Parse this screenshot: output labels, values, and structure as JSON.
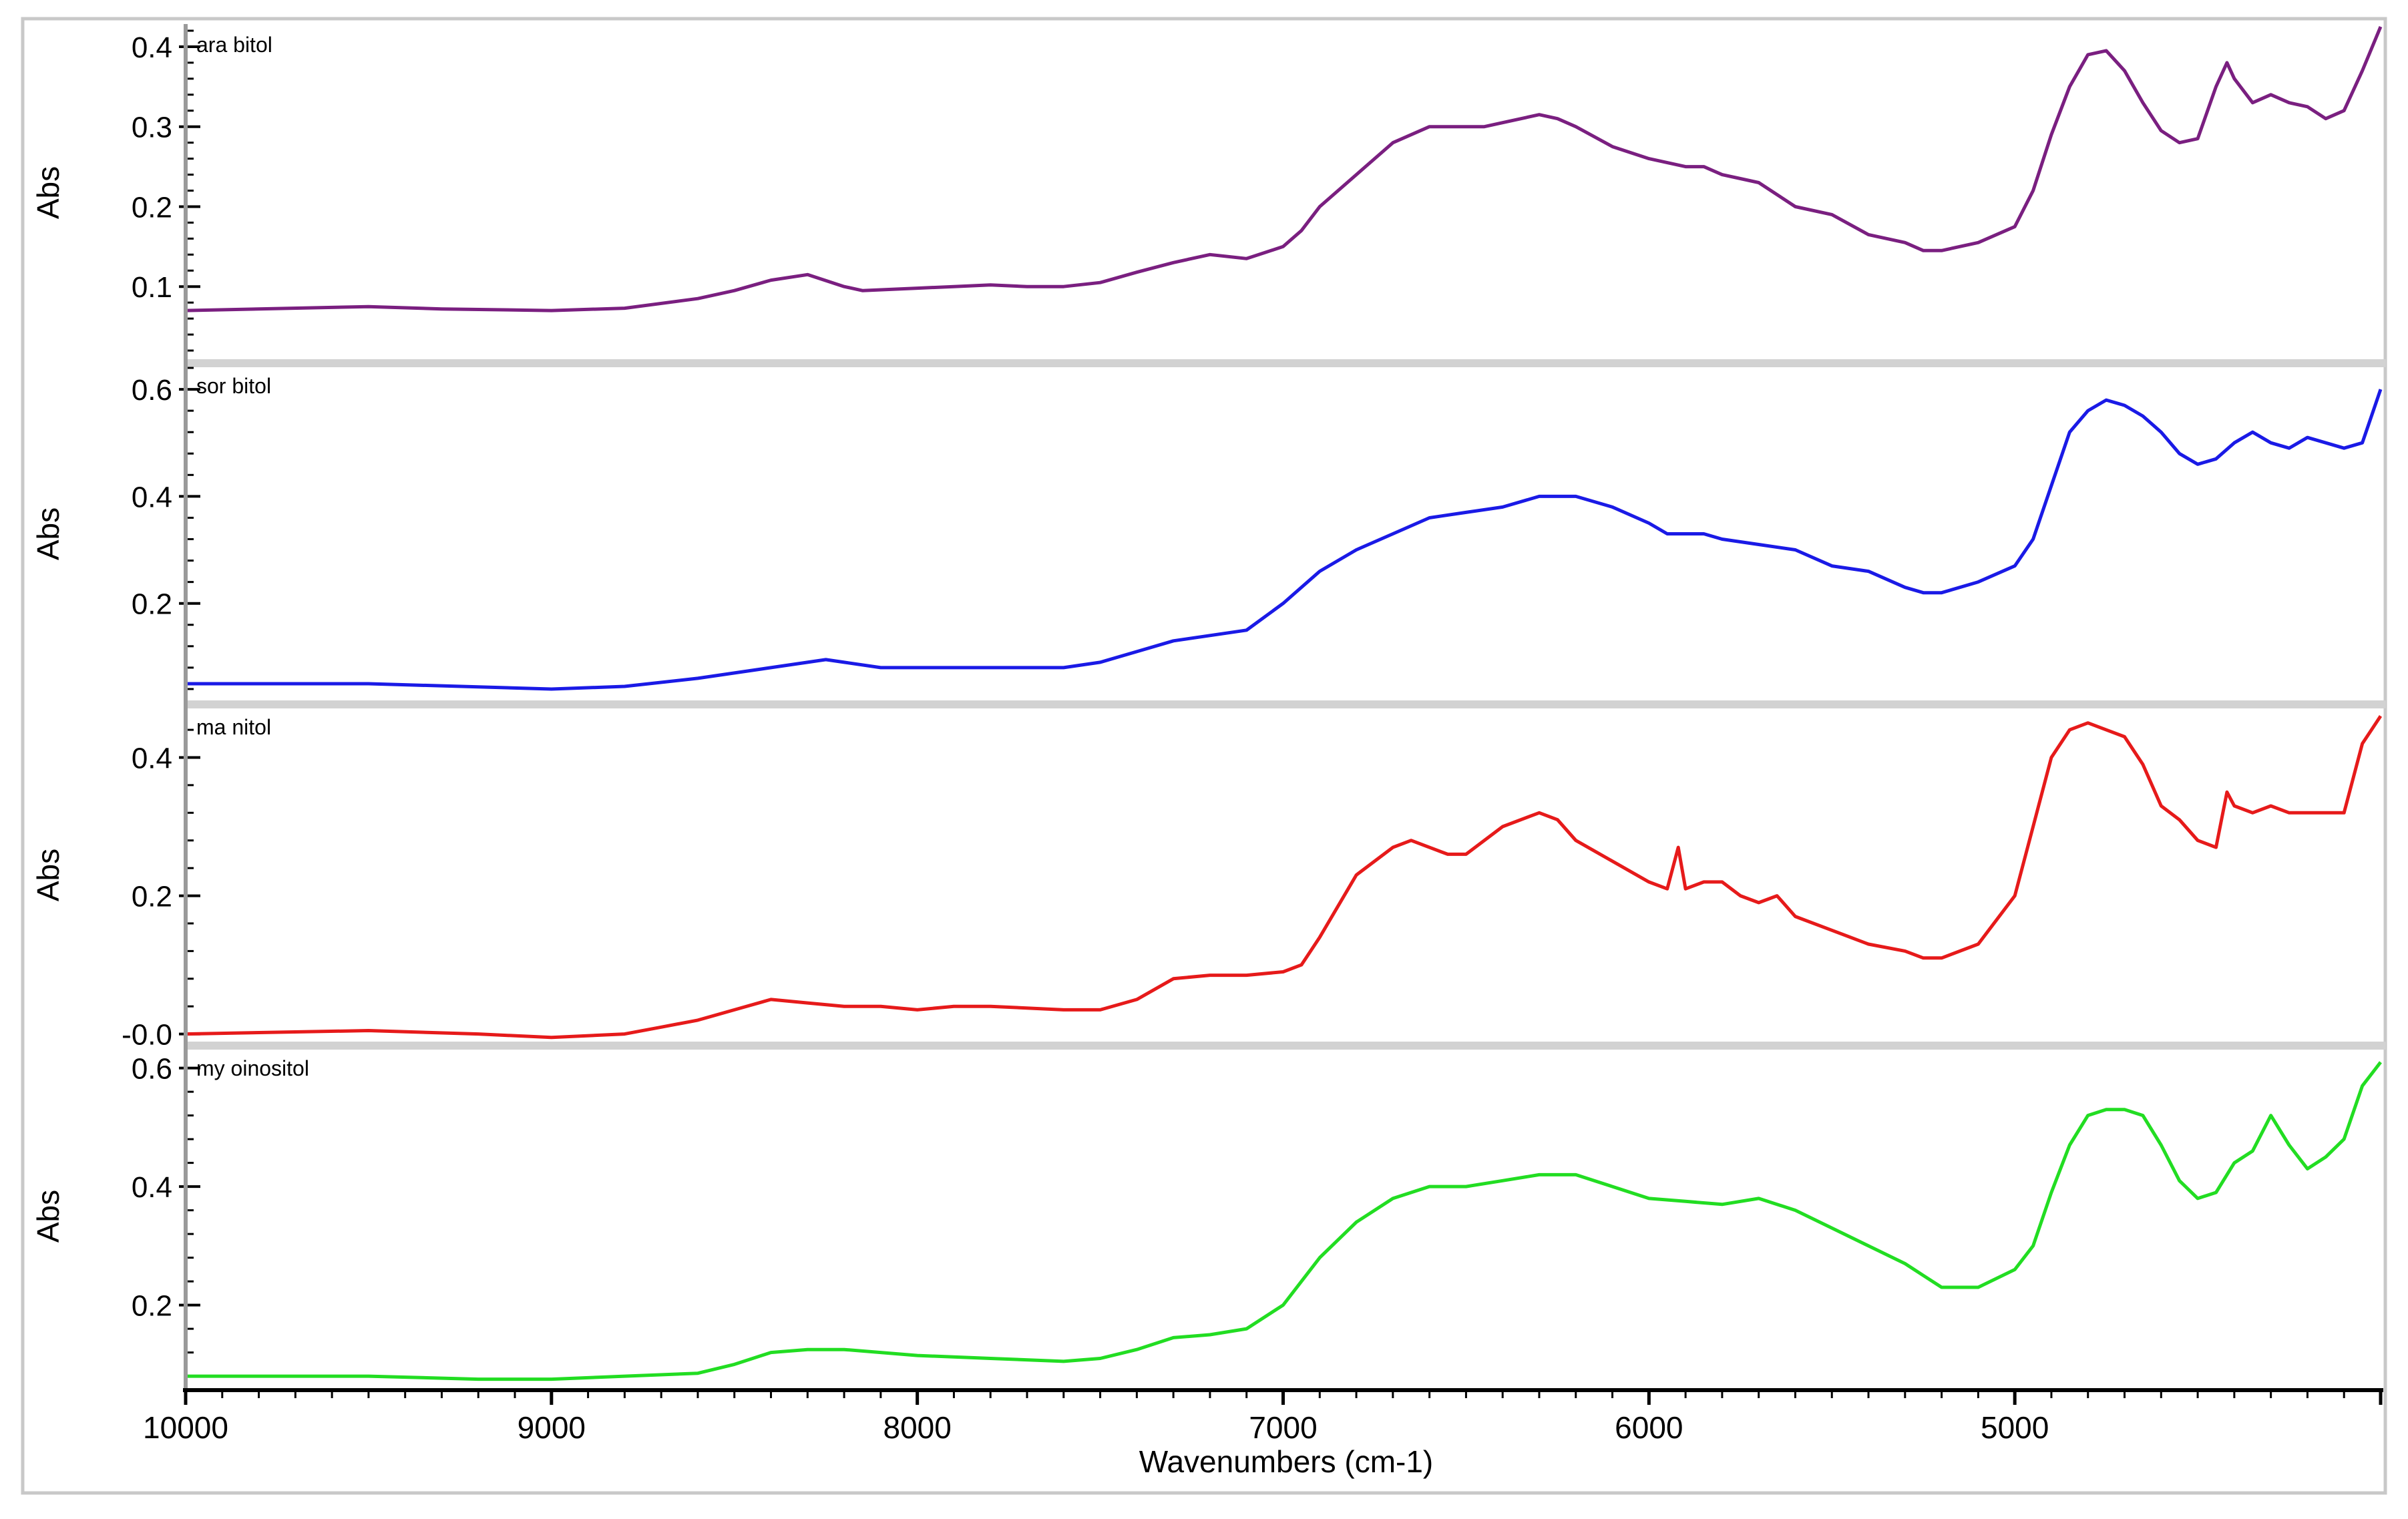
{
  "chart_data": {
    "type": "line",
    "xlabel": "Wavenumbers (cm-1)",
    "x_ticks": [
      10000,
      9000,
      8000,
      7000,
      6000,
      5000
    ],
    "x_tick_labels": [
      "10000",
      "9000",
      "8000",
      "7000",
      "6000",
      "5000"
    ],
    "xlim": [
      10000,
      4000
    ],
    "panels": [
      {
        "name": "arabitol",
        "label": "ara bitol",
        "ylabel": "Abs",
        "color": "#7a1f80",
        "ylim": [
          0.01,
          0.425
        ],
        "y_ticks": [
          0.1,
          0.2,
          0.3,
          0.4
        ],
        "y_tick_labels": [
          "0.1",
          "0.2",
          "0.3",
          "0.4"
        ],
        "x": [
          10000,
          9500,
          9300,
          9000,
          8800,
          8600,
          8500,
          8400,
          8300,
          8200,
          8150,
          8000,
          7900,
          7800,
          7700,
          7600,
          7500,
          7400,
          7300,
          7200,
          7100,
          7000,
          6950,
          6900,
          6800,
          6700,
          6600,
          6550,
          6500,
          6450,
          6400,
          6300,
          6250,
          6200,
          6100,
          6000,
          5950,
          5900,
          5850,
          5800,
          5750,
          5700,
          5600,
          5500,
          5400,
          5300,
          5250,
          5200,
          5100,
          5000,
          4950,
          4900,
          4850,
          4800,
          4750,
          4700,
          4650,
          4600,
          4550,
          4500,
          4450,
          4420,
          4400,
          4350,
          4300,
          4250,
          4200,
          4150,
          4100,
          4050,
          4000
        ],
        "values": [
          0.07,
          0.075,
          0.072,
          0.07,
          0.073,
          0.085,
          0.095,
          0.108,
          0.115,
          0.1,
          0.095,
          0.098,
          0.1,
          0.102,
          0.1,
          0.1,
          0.105,
          0.118,
          0.13,
          0.14,
          0.135,
          0.15,
          0.17,
          0.2,
          0.24,
          0.28,
          0.3,
          0.3,
          0.3,
          0.3,
          0.305,
          0.315,
          0.31,
          0.3,
          0.275,
          0.26,
          0.255,
          0.25,
          0.25,
          0.24,
          0.235,
          0.23,
          0.2,
          0.19,
          0.165,
          0.155,
          0.145,
          0.145,
          0.155,
          0.175,
          0.22,
          0.29,
          0.35,
          0.39,
          0.395,
          0.37,
          0.33,
          0.295,
          0.28,
          0.285,
          0.35,
          0.38,
          0.36,
          0.33,
          0.34,
          0.33,
          0.325,
          0.31,
          0.32,
          0.37,
          0.425
        ]
      },
      {
        "name": "sorbitol",
        "label": "sor bitol",
        "ylabel": "Abs",
        "color": "#1a1ae6",
        "ylim": [
          0.02,
          0.64
        ],
        "y_ticks": [
          0.2,
          0.4,
          0.6
        ],
        "y_tick_labels": [
          "0.2",
          "0.4",
          "0.6"
        ],
        "x": [
          10000,
          9500,
          9000,
          8800,
          8600,
          8500,
          8400,
          8300,
          8250,
          8200,
          8100,
          8000,
          7900,
          7800,
          7600,
          7500,
          7400,
          7300,
          7200,
          7100,
          7000,
          6900,
          6800,
          6700,
          6600,
          6500,
          6400,
          6300,
          6200,
          6100,
          6000,
          5950,
          5900,
          5850,
          5800,
          5700,
          5600,
          5500,
          5400,
          5300,
          5250,
          5200,
          5100,
          5000,
          4950,
          4900,
          4850,
          4800,
          4750,
          4700,
          4650,
          4600,
          4550,
          4500,
          4450,
          4400,
          4350,
          4300,
          4250,
          4200,
          4150,
          4100,
          4050,
          4000
        ],
        "values": [
          0.05,
          0.05,
          0.04,
          0.045,
          0.06,
          0.07,
          0.08,
          0.09,
          0.095,
          0.09,
          0.08,
          0.08,
          0.08,
          0.08,
          0.08,
          0.09,
          0.11,
          0.13,
          0.14,
          0.15,
          0.2,
          0.26,
          0.3,
          0.33,
          0.36,
          0.37,
          0.38,
          0.4,
          0.4,
          0.38,
          0.35,
          0.33,
          0.33,
          0.33,
          0.32,
          0.31,
          0.3,
          0.27,
          0.26,
          0.23,
          0.22,
          0.22,
          0.24,
          0.27,
          0.32,
          0.42,
          0.52,
          0.56,
          0.58,
          0.57,
          0.55,
          0.52,
          0.48,
          0.46,
          0.47,
          0.5,
          0.52,
          0.5,
          0.49,
          0.51,
          0.5,
          0.49,
          0.5,
          0.6
        ]
      },
      {
        "name": "manitol",
        "label": "ma nitol",
        "ylabel": "Abs",
        "color": "#e61a1a",
        "ylim": [
          -0.01,
          0.47
        ],
        "y_ticks": [
          -0.0,
          0.2,
          0.4
        ],
        "y_tick_labels": [
          "-0.0",
          "0.2",
          "0.4"
        ],
        "x": [
          10000,
          9500,
          9200,
          9000,
          8800,
          8700,
          8600,
          8500,
          8400,
          8300,
          8200,
          8100,
          8000,
          7900,
          7800,
          7600,
          7500,
          7400,
          7300,
          7200,
          7100,
          7000,
          6950,
          6900,
          6800,
          6700,
          6650,
          6600,
          6550,
          6500,
          6400,
          6300,
          6250,
          6200,
          6100,
          6000,
          5950,
          5920,
          5900,
          5850,
          5800,
          5750,
          5700,
          5650,
          5600,
          5500,
          5400,
          5300,
          5250,
          5200,
          5100,
          5000,
          4950,
          4900,
          4850,
          4800,
          4750,
          4700,
          4650,
          4600,
          4550,
          4500,
          4450,
          4420,
          4400,
          4350,
          4300,
          4250,
          4200,
          4150,
          4100,
          4050,
          4000
        ],
        "values": [
          0.0,
          0.005,
          0.0,
          -0.005,
          0.0,
          0.01,
          0.02,
          0.035,
          0.05,
          0.045,
          0.04,
          0.04,
          0.035,
          0.04,
          0.04,
          0.035,
          0.035,
          0.05,
          0.08,
          0.085,
          0.085,
          0.09,
          0.1,
          0.14,
          0.23,
          0.27,
          0.28,
          0.27,
          0.26,
          0.26,
          0.3,
          0.32,
          0.31,
          0.28,
          0.25,
          0.22,
          0.21,
          0.27,
          0.21,
          0.22,
          0.22,
          0.2,
          0.19,
          0.2,
          0.17,
          0.15,
          0.13,
          0.12,
          0.11,
          0.11,
          0.13,
          0.2,
          0.3,
          0.4,
          0.44,
          0.45,
          0.44,
          0.43,
          0.39,
          0.33,
          0.31,
          0.28,
          0.27,
          0.35,
          0.33,
          0.32,
          0.33,
          0.32,
          0.32,
          0.32,
          0.32,
          0.42,
          0.46
        ]
      },
      {
        "name": "myoinositol",
        "label": "my oinositol",
        "ylabel": "Abs",
        "color": "#22dd22",
        "ylim": [
          0.07,
          0.63
        ],
        "y_ticks": [
          0.2,
          0.4,
          0.6
        ],
        "y_tick_labels": [
          "0.2",
          "0.4",
          "0.6"
        ],
        "x": [
          10000,
          9500,
          9200,
          9000,
          8800,
          8600,
          8500,
          8400,
          8300,
          8200,
          8000,
          7800,
          7600,
          7500,
          7400,
          7300,
          7200,
          7100,
          7000,
          6900,
          6800,
          6700,
          6600,
          6500,
          6400,
          6300,
          6200,
          6100,
          6000,
          5900,
          5800,
          5700,
          5600,
          5500,
          5400,
          5300,
          5250,
          5200,
          5100,
          5000,
          4950,
          4900,
          4850,
          4800,
          4750,
          4700,
          4650,
          4600,
          4550,
          4500,
          4450,
          4400,
          4350,
          4300,
          4250,
          4200,
          4150,
          4100,
          4050,
          4000
        ],
        "values": [
          0.08,
          0.08,
          0.075,
          0.075,
          0.08,
          0.085,
          0.1,
          0.12,
          0.125,
          0.125,
          0.115,
          0.11,
          0.105,
          0.11,
          0.125,
          0.145,
          0.15,
          0.16,
          0.2,
          0.28,
          0.34,
          0.38,
          0.4,
          0.4,
          0.41,
          0.42,
          0.42,
          0.4,
          0.38,
          0.375,
          0.37,
          0.38,
          0.36,
          0.33,
          0.3,
          0.27,
          0.25,
          0.23,
          0.23,
          0.26,
          0.3,
          0.39,
          0.47,
          0.52,
          0.53,
          0.53,
          0.52,
          0.47,
          0.41,
          0.38,
          0.39,
          0.44,
          0.46,
          0.52,
          0.47,
          0.43,
          0.45,
          0.48,
          0.57,
          0.61
        ]
      }
    ]
  }
}
